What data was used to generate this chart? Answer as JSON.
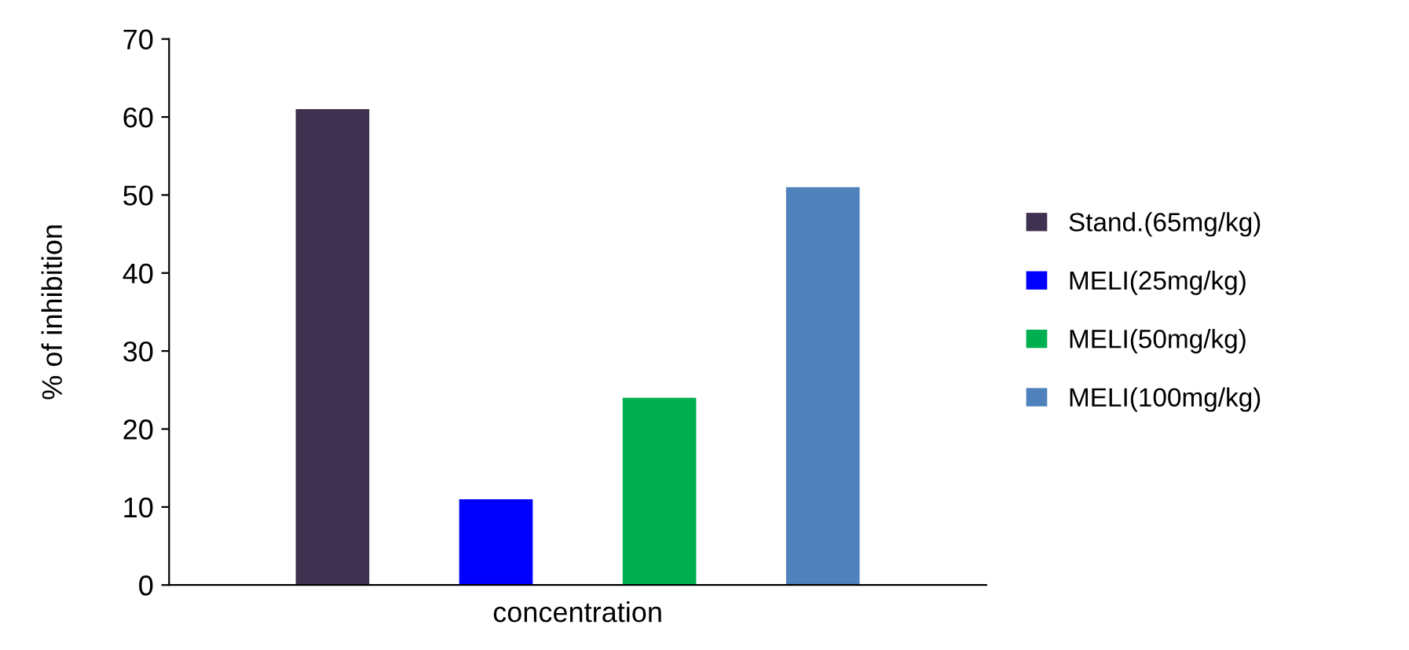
{
  "chart_data": {
    "type": "bar",
    "xlabel": "concentration",
    "ylabel": "% of inhibition",
    "categories": [
      null
    ],
    "series": [
      {
        "name": "Stand.(65mg/kg)",
        "color": "#3f3150",
        "values": [
          61
        ]
      },
      {
        "name": "MELI(25mg/kg)",
        "color": "#0000ff",
        "values": [
          11
        ]
      },
      {
        "name": "MELI(50mg/kg)",
        "color": "#00b050",
        "values": [
          24
        ]
      },
      {
        "name": "MELI(100mg/kg)",
        "color": "#4f81bd",
        "values": [
          51
        ]
      }
    ],
    "ylim": [
      0,
      70
    ],
    "yticks": [
      0,
      10,
      20,
      30,
      40,
      50,
      60,
      70
    ],
    "grid": false,
    "legend": "right"
  }
}
